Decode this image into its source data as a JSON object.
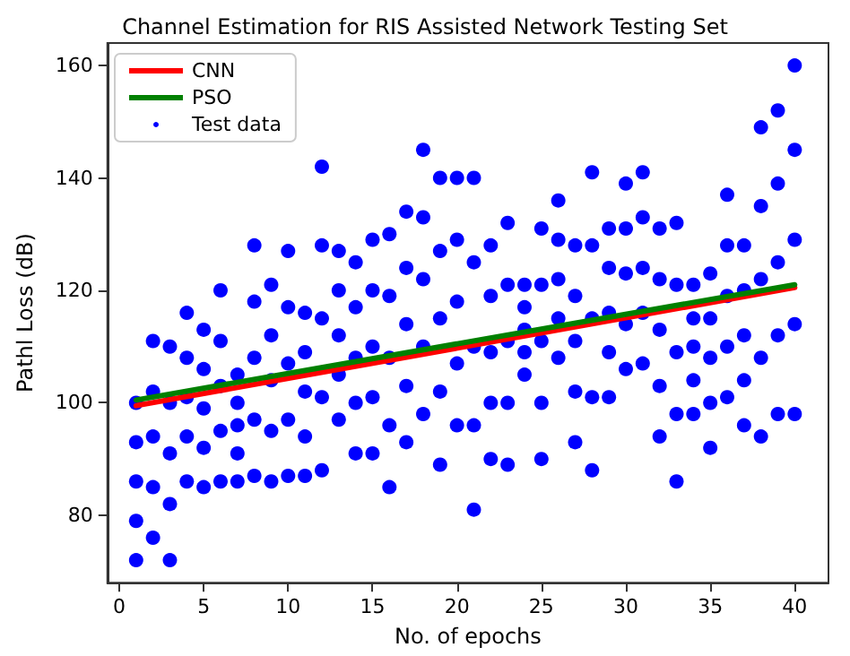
{
  "chart_data": {
    "type": "scatter",
    "title": "Channel Estimation for RIS Assisted Network Testing Set",
    "xlabel": "No. of epochs",
    "ylabel": "Pathl Loss (dB)",
    "xlim": [
      -0.7,
      42
    ],
    "ylim": [
      68,
      164
    ],
    "xticks": [
      0,
      5,
      10,
      15,
      20,
      25,
      30,
      35,
      40
    ],
    "yticks": [
      80,
      100,
      120,
      140,
      160
    ],
    "grid": false,
    "legend": "top left",
    "series": [
      {
        "name": "CNN",
        "type": "line",
        "color": "#ff0000",
        "marker": "none",
        "x": [
          1,
          40
        ],
        "values": [
          99.5,
          120.5
        ]
      },
      {
        "name": "PSO",
        "type": "line",
        "color": "#008000",
        "marker": "none",
        "x": [
          1,
          40
        ],
        "values": [
          100.5,
          121
        ]
      },
      {
        "name": "Test data",
        "color": "#0000ff",
        "marker": "circle",
        "x": [
          1,
          1,
          1,
          1,
          1,
          2,
          2,
          2,
          2,
          2,
          3,
          3,
          3,
          3,
          3,
          4,
          4,
          4,
          4,
          4,
          5,
          5,
          5,
          5,
          5,
          6,
          6,
          6,
          6,
          6,
          7,
          7,
          7,
          7,
          7,
          8,
          8,
          8,
          8,
          8,
          9,
          9,
          9,
          9,
          9,
          10,
          10,
          10,
          10,
          10,
          11,
          11,
          11,
          11,
          11,
          12,
          12,
          12,
          12,
          12,
          13,
          13,
          13,
          13,
          13,
          14,
          14,
          14,
          14,
          14,
          15,
          15,
          15,
          15,
          15,
          16,
          16,
          16,
          16,
          16,
          17,
          17,
          17,
          17,
          17,
          18,
          18,
          18,
          18,
          18,
          19,
          19,
          19,
          19,
          19,
          20,
          20,
          20,
          20,
          20,
          21,
          21,
          21,
          21,
          21,
          22,
          22,
          22,
          22,
          22,
          23,
          23,
          23,
          23,
          23,
          24,
          24,
          24,
          24,
          24,
          25,
          25,
          25,
          25,
          25,
          26,
          26,
          26,
          26,
          26,
          27,
          27,
          27,
          27,
          27,
          28,
          28,
          28,
          28,
          28,
          29,
          29,
          29,
          29,
          29,
          30,
          30,
          30,
          30,
          30,
          31,
          31,
          31,
          31,
          31,
          32,
          32,
          32,
          32,
          32,
          33,
          33,
          33,
          33,
          33,
          34,
          34,
          34,
          34,
          34,
          35,
          35,
          35,
          35,
          35,
          36,
          36,
          36,
          36,
          36,
          37,
          37,
          37,
          37,
          37,
          38,
          38,
          38,
          38,
          38,
          39,
          39,
          39,
          39,
          39,
          40,
          40,
          40,
          40,
          40
        ],
        "values": [
          72,
          79,
          86,
          93,
          100,
          76,
          85,
          94,
          102,
          111,
          72,
          82,
          91,
          100,
          110,
          86,
          94,
          101,
          108,
          116,
          85,
          92,
          99,
          106,
          113,
          86,
          95,
          103,
          111,
          120,
          86,
          91,
          96,
          100,
          105,
          87,
          97,
          108,
          118,
          128,
          86,
          95,
          104,
          112,
          121,
          87,
          97,
          107,
          117,
          127,
          87,
          94,
          102,
          109,
          116,
          88,
          101,
          115,
          128,
          142,
          97,
          105,
          112,
          120,
          127,
          91,
          100,
          108,
          117,
          125,
          91,
          101,
          110,
          120,
          129,
          85,
          96,
          108,
          119,
          130,
          93,
          103,
          114,
          124,
          134,
          98,
          110,
          122,
          133,
          145,
          89,
          102,
          115,
          127,
          140,
          96,
          107,
          118,
          129,
          140,
          81,
          96,
          110,
          125,
          140,
          90,
          100,
          109,
          119,
          128,
          89,
          100,
          111,
          121,
          132,
          105,
          109,
          113,
          117,
          121,
          90,
          100,
          111,
          121,
          131,
          108,
          115,
          122,
          129,
          136,
          93,
          102,
          111,
          119,
          128,
          88,
          101,
          115,
          128,
          141,
          101,
          109,
          116,
          124,
          131,
          106,
          114,
          123,
          131,
          139,
          107,
          116,
          124,
          133,
          141,
          94,
          103,
          113,
          122,
          131,
          86,
          98,
          109,
          121,
          132,
          98,
          104,
          110,
          115,
          121,
          92,
          100,
          108,
          115,
          123,
          101,
          110,
          119,
          128,
          137,
          96,
          104,
          112,
          120,
          128,
          94,
          108,
          122,
          135,
          149,
          98,
          112,
          125,
          139,
          152,
          98,
          114,
          129,
          145,
          160
        ]
      }
    ]
  }
}
